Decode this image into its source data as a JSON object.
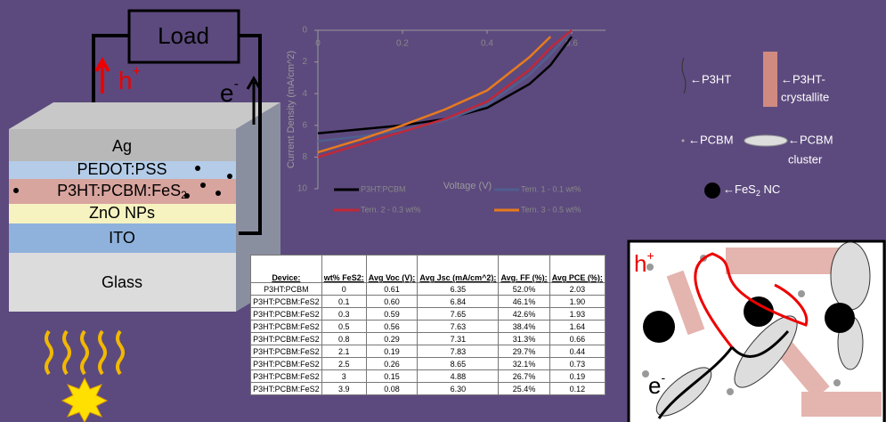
{
  "chart_data": {
    "type": "line",
    "x_label": "Voltage (V)",
    "y_label": "Current Density (mA/cm^2)",
    "x": [
      0,
      0.1,
      0.2,
      0.3,
      0.4,
      0.5,
      0.55,
      0.6
    ],
    "series": [
      {
        "name": "P3HT:PCBM",
        "color": "#000000",
        "values": [
          6.5,
          6.25,
          6.0,
          5.6,
          4.9,
          3.4,
          2.2,
          0.4
        ]
      },
      {
        "name": "Tern. 1 - 0.1 wt%",
        "color": "#4f5f8f",
        "values": [
          7.0,
          6.7,
          6.3,
          5.7,
          4.7,
          2.8,
          1.5,
          0
        ]
      },
      {
        "name": "Tern. 2 - 0.3 wt%",
        "color": "#c0283a",
        "values": [
          8.0,
          7.2,
          6.4,
          5.6,
          4.5,
          2.5,
          1.1,
          0
        ]
      },
      {
        "name": "Tern. 3 - 0.5 wt%",
        "color": "#e87a1e",
        "values": [
          7.7,
          6.9,
          6.0,
          5.0,
          3.8,
          1.7,
          0.4,
          null
        ]
      }
    ],
    "xlim": [
      0,
      0.68
    ],
    "xticks": [
      0,
      0.2,
      0.4,
      0.6
    ],
    "ylim": [
      0,
      10
    ],
    "yticks": [
      0,
      2,
      4,
      6,
      8,
      10
    ],
    "y_inverted": true,
    "grid": false
  },
  "device": {
    "load": "Load",
    "hole": {
      "base": "h",
      "sup": "+"
    },
    "electron": {
      "base": "e",
      "sup": "-"
    },
    "layers": [
      "Ag",
      "PEDOT:PSS",
      {
        "base": "P3HT:PCBM:FeS",
        "sub": "2"
      },
      "ZnO NPs",
      "ITO",
      "Glass"
    ]
  },
  "legend": {
    "p3ht": "←P3HT",
    "crystallite": [
      "←P3HT-",
      "crystallite"
    ],
    "pcbm": "←PCBM",
    "cluster": [
      "←PCBM",
      "cluster"
    ],
    "fes2": {
      "base": "←FeS",
      "sub": "2",
      "rest": " NC"
    }
  },
  "table": {
    "header": [
      "Device:",
      "wt% FeS2:",
      "Avg Voc (V):",
      "Avg Jsc (mA/cm^2):",
      "Avg. FF (%):",
      "Avg PCE (%):"
    ],
    "rows": [
      [
        "P3HT:PCBM",
        "0",
        "0.61",
        "6.35",
        "52.0%",
        "2.03"
      ],
      [
        "P3HT:PCBM:FeS2",
        "0.1",
        "0.60",
        "6.84",
        "46.1%",
        "1.90"
      ],
      [
        "P3HT:PCBM:FeS2",
        "0.3",
        "0.59",
        "7.65",
        "42.6%",
        "1.93"
      ],
      [
        "P3HT:PCBM:FeS2",
        "0.5",
        "0.56",
        "7.63",
        "38.4%",
        "1.64"
      ],
      [
        "P3HT:PCBM:FeS2",
        "0.8",
        "0.29",
        "7.31",
        "31.3%",
        "0.66"
      ],
      [
        "P3HT:PCBM:FeS2",
        "2.1",
        "0.19",
        "7.83",
        "29.7%",
        "0.44"
      ],
      [
        "P3HT:PCBM:FeS2",
        "2.5",
        "0.26",
        "8.65",
        "32.1%",
        "0.73"
      ],
      [
        "P3HT:PCBM:FeS2",
        "3",
        "0.15",
        "4.88",
        "26.7%",
        "0.19"
      ],
      [
        "P3HT:PCBM:FeS2",
        "3.9",
        "0.08",
        "6.30",
        "25.4%",
        "0.12"
      ]
    ]
  },
  "morphology": {
    "hole": {
      "base": "h",
      "sup": "+"
    },
    "electron": {
      "base": "e",
      "sup": "-"
    }
  }
}
